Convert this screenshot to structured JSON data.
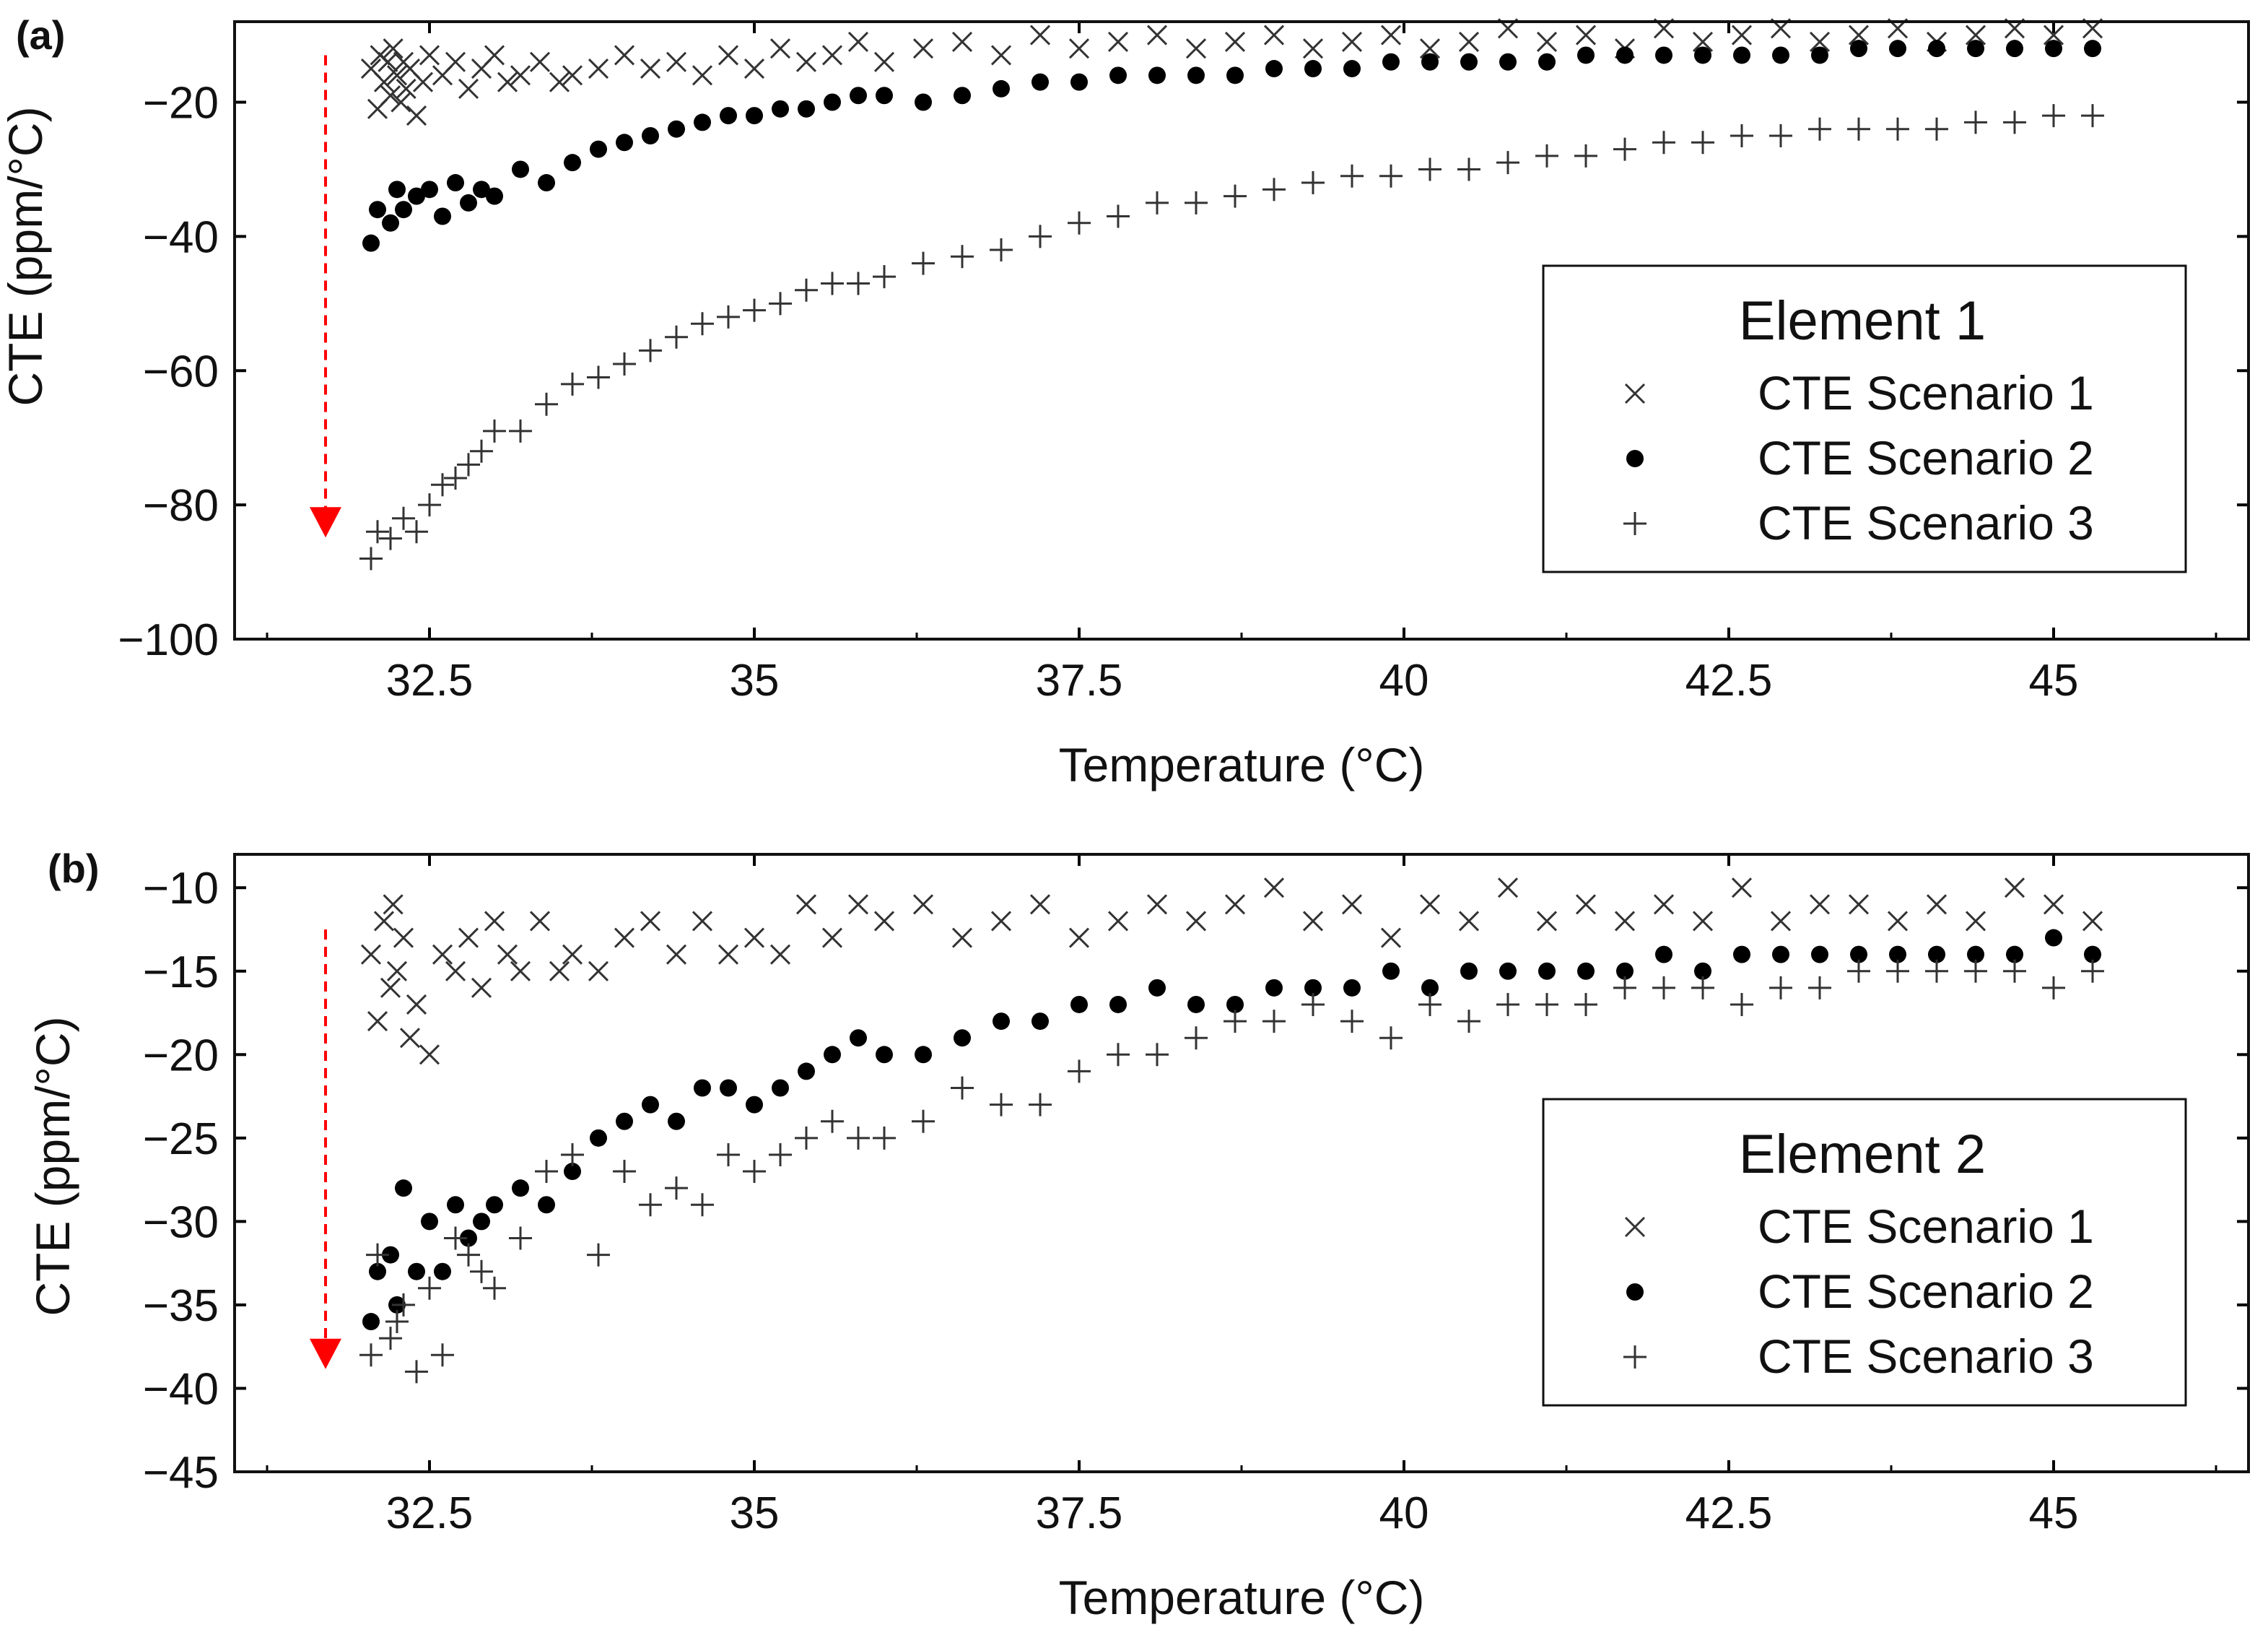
{
  "figure": {
    "background": "#ffffff",
    "mark_color": "#000000",
    "arrow_color": "#ff0000"
  },
  "chart_data": [
    {
      "type": "scatter",
      "panel_label": "(a)",
      "xlabel": "Temperature (°C)",
      "ylabel": "CTE (ppm/°C)",
      "xlim": [
        31.0,
        46.5
      ],
      "ylim": [
        -100,
        -8
      ],
      "xticks": [
        32.5,
        35,
        37.5,
        40,
        42.5,
        45
      ],
      "xtick_labels": [
        "32.5",
        "35",
        "37.5",
        "40",
        "42.5",
        "45"
      ],
      "yticks": [
        -100,
        -80,
        -60,
        -40,
        -20
      ],
      "ytick_labels": [
        "−100",
        "−80",
        "−60",
        "−40",
        "−20"
      ],
      "annotation": {
        "type": "dashed-arrow",
        "x": 31.7,
        "y_from": -13,
        "y_to": -84
      },
      "legend": {
        "title": "Element 1",
        "position": "right",
        "entries": [
          "CTE Scenario 1",
          "CTE Scenario 2",
          "CTE Scenario 3"
        ]
      },
      "series": [
        {
          "name": "CTE Scenario 1",
          "marker": "x",
          "x": [
            32.05,
            32.1,
            32.12,
            32.15,
            32.18,
            32.2,
            32.22,
            32.25,
            32.28,
            32.3,
            32.32,
            32.35,
            32.4,
            32.45,
            32.5,
            32.6,
            32.7,
            32.8,
            32.9,
            33.0,
            33.1,
            33.2,
            33.35,
            33.5,
            33.6,
            33.8,
            34.0,
            34.2,
            34.4,
            34.6,
            34.8,
            35.0,
            35.2,
            35.4,
            35.6,
            35.8,
            36.0,
            36.3,
            36.6,
            36.9,
            37.2,
            37.5,
            37.8,
            38.1,
            38.4,
            38.7,
            39.0,
            39.3,
            39.6,
            39.9,
            40.2,
            40.5,
            40.8,
            41.1,
            41.4,
            41.7,
            42.0,
            42.3,
            42.6,
            42.9,
            43.2,
            43.5,
            43.8,
            44.1,
            44.4,
            44.7,
            45.0,
            45.3
          ],
          "y": [
            -15,
            -21,
            -13,
            -17,
            -14,
            -19,
            -12,
            -16,
            -20,
            -14,
            -18,
            -15,
            -22,
            -17,
            -13,
            -16,
            -14,
            -18,
            -15,
            -13,
            -17,
            -16,
            -14,
            -17,
            -16,
            -15,
            -13,
            -15,
            -14,
            -16,
            -13,
            -15,
            -12,
            -14,
            -13,
            -11,
            -14,
            -12,
            -11,
            -13,
            -10,
            -12,
            -11,
            -10,
            -12,
            -11,
            -10,
            -12,
            -11,
            -10,
            -12,
            -11,
            -9,
            -11,
            -10,
            -12,
            -9,
            -11,
            -10,
            -9,
            -11,
            -10,
            -9,
            -11,
            -10,
            -9,
            -10,
            -9
          ]
        },
        {
          "name": "CTE Scenario 2",
          "marker": "dot",
          "x": [
            32.05,
            32.1,
            32.2,
            32.25,
            32.3,
            32.4,
            32.5,
            32.6,
            32.7,
            32.8,
            32.9,
            33.0,
            33.2,
            33.4,
            33.6,
            33.8,
            34.0,
            34.2,
            34.4,
            34.6,
            34.8,
            35.0,
            35.2,
            35.4,
            35.6,
            35.8,
            36.0,
            36.3,
            36.6,
            36.9,
            37.2,
            37.5,
            37.8,
            38.1,
            38.4,
            38.7,
            39.0,
            39.3,
            39.6,
            39.9,
            40.2,
            40.5,
            40.8,
            41.1,
            41.4,
            41.7,
            42.0,
            42.3,
            42.6,
            42.9,
            43.2,
            43.5,
            43.8,
            44.1,
            44.4,
            44.7,
            45.0,
            45.3
          ],
          "y": [
            -41,
            -36,
            -38,
            -33,
            -36,
            -34,
            -33,
            -37,
            -32,
            -35,
            -33,
            -34,
            -30,
            -32,
            -29,
            -27,
            -26,
            -25,
            -24,
            -23,
            -22,
            -22,
            -21,
            -21,
            -20,
            -19,
            -19,
            -20,
            -19,
            -18,
            -17,
            -17,
            -16,
            -16,
            -16,
            -16,
            -15,
            -15,
            -15,
            -14,
            -14,
            -14,
            -14,
            -14,
            -13,
            -13,
            -13,
            -13,
            -13,
            -13,
            -13,
            -12,
            -12,
            -12,
            -12,
            -12,
            -12,
            -12
          ]
        },
        {
          "name": "CTE Scenario 3",
          "marker": "plus",
          "x": [
            32.05,
            32.1,
            32.2,
            32.3,
            32.4,
            32.5,
            32.6,
            32.7,
            32.8,
            32.9,
            33.0,
            33.2,
            33.4,
            33.6,
            33.8,
            34.0,
            34.2,
            34.4,
            34.6,
            34.8,
            35.0,
            35.2,
            35.4,
            35.6,
            35.8,
            36.0,
            36.3,
            36.6,
            36.9,
            37.2,
            37.5,
            37.8,
            38.1,
            38.4,
            38.7,
            39.0,
            39.3,
            39.6,
            39.9,
            40.2,
            40.5,
            40.8,
            41.1,
            41.4,
            41.7,
            42.0,
            42.3,
            42.6,
            42.9,
            43.2,
            43.5,
            43.8,
            44.1,
            44.4,
            44.7,
            45.0,
            45.3
          ],
          "y": [
            -88,
            -84,
            -85,
            -82,
            -84,
            -80,
            -77,
            -76,
            -74,
            -72,
            -69,
            -69,
            -65,
            -62,
            -61,
            -59,
            -57,
            -55,
            -53,
            -52,
            -51,
            -50,
            -48,
            -47,
            -47,
            -46,
            -44,
            -43,
            -42,
            -40,
            -38,
            -37,
            -35,
            -35,
            -34,
            -33,
            -32,
            -31,
            -31,
            -30,
            -30,
            -29,
            -28,
            -28,
            -27,
            -26,
            -26,
            -25,
            -25,
            -24,
            -24,
            -24,
            -24,
            -23,
            -23,
            -22,
            -22
          ]
        }
      ]
    },
    {
      "type": "scatter",
      "panel_label": "(b)",
      "xlabel": "Temperature (°C)",
      "ylabel": "CTE (ppm/°C)",
      "xlim": [
        31.0,
        46.5
      ],
      "ylim": [
        -45,
        -8
      ],
      "xticks": [
        32.5,
        35,
        37.5,
        40,
        42.5,
        45
      ],
      "xtick_labels": [
        "32.5",
        "35",
        "37.5",
        "40",
        "42.5",
        "45"
      ],
      "yticks": [
        -45,
        -40,
        -35,
        -30,
        -25,
        -20,
        -15,
        -10
      ],
      "ytick_labels": [
        "−45",
        "−40",
        "−35",
        "−30",
        "−25",
        "−20",
        "−15",
        "−10"
      ],
      "annotation": {
        "type": "dashed-arrow",
        "x": 31.7,
        "y_from": -12.5,
        "y_to": -38.5
      },
      "legend": {
        "title": "Element 2",
        "position": "right",
        "entries": [
          "CTE Scenario 1",
          "CTE Scenario 2",
          "CTE Scenario 3"
        ]
      },
      "series": [
        {
          "name": "CTE Scenario 1",
          "marker": "x",
          "x": [
            32.05,
            32.1,
            32.15,
            32.2,
            32.22,
            32.25,
            32.3,
            32.35,
            32.4,
            32.5,
            32.6,
            32.7,
            32.8,
            32.9,
            33.0,
            33.1,
            33.2,
            33.35,
            33.5,
            33.6,
            33.8,
            34.0,
            34.2,
            34.4,
            34.6,
            34.8,
            35.0,
            35.2,
            35.4,
            35.6,
            35.8,
            36.0,
            36.3,
            36.6,
            36.9,
            37.2,
            37.5,
            37.8,
            38.1,
            38.4,
            38.7,
            39.0,
            39.3,
            39.6,
            39.9,
            40.2,
            40.5,
            40.8,
            41.1,
            41.4,
            41.7,
            42.0,
            42.3,
            42.6,
            42.9,
            43.2,
            43.5,
            43.8,
            44.1,
            44.4,
            44.7,
            45.0,
            45.3
          ],
          "y": [
            -14,
            -18,
            -12,
            -16,
            -11,
            -15,
            -13,
            -19,
            -17,
            -20,
            -14,
            -15,
            -13,
            -16,
            -12,
            -14,
            -15,
            -12,
            -15,
            -14,
            -15,
            -13,
            -12,
            -14,
            -12,
            -14,
            -13,
            -14,
            -11,
            -13,
            -11,
            -12,
            -11,
            -13,
            -12,
            -11,
            -13,
            -12,
            -11,
            -12,
            -11,
            -10,
            -12,
            -11,
            -13,
            -11,
            -12,
            -10,
            -12,
            -11,
            -12,
            -11,
            -12,
            -10,
            -12,
            -11,
            -11,
            -12,
            -11,
            -12,
            -10,
            -11,
            -12
          ]
        },
        {
          "name": "CTE Scenario 2",
          "marker": "dot",
          "x": [
            32.05,
            32.1,
            32.2,
            32.25,
            32.3,
            32.4,
            32.5,
            32.6,
            32.7,
            32.8,
            32.9,
            33.0,
            33.2,
            33.4,
            33.6,
            33.8,
            34.0,
            34.2,
            34.4,
            34.6,
            34.8,
            35.0,
            35.2,
            35.4,
            35.6,
            35.8,
            36.0,
            36.3,
            36.6,
            36.9,
            37.2,
            37.5,
            37.8,
            38.1,
            38.4,
            38.7,
            39.0,
            39.3,
            39.6,
            39.9,
            40.2,
            40.5,
            40.8,
            41.1,
            41.4,
            41.7,
            42.0,
            42.3,
            42.6,
            42.9,
            43.2,
            43.5,
            43.8,
            44.1,
            44.4,
            44.7,
            45.0,
            45.3
          ],
          "y": [
            -36,
            -33,
            -32,
            -35,
            -28,
            -33,
            -30,
            -33,
            -29,
            -31,
            -30,
            -29,
            -28,
            -29,
            -27,
            -25,
            -24,
            -23,
            -24,
            -22,
            -22,
            -23,
            -22,
            -21,
            -20,
            -19,
            -20,
            -20,
            -19,
            -18,
            -18,
            -17,
            -17,
            -16,
            -17,
            -17,
            -16,
            -16,
            -16,
            -15,
            -16,
            -15,
            -15,
            -15,
            -15,
            -15,
            -14,
            -15,
            -14,
            -14,
            -14,
            -14,
            -14,
            -14,
            -14,
            -14,
            -13,
            -14
          ]
        },
        {
          "name": "CTE Scenario 3",
          "marker": "plus",
          "x": [
            32.05,
            32.1,
            32.2,
            32.25,
            32.3,
            32.4,
            32.5,
            32.6,
            32.7,
            32.8,
            32.9,
            33.0,
            33.2,
            33.4,
            33.6,
            33.8,
            34.0,
            34.2,
            34.4,
            34.6,
            34.8,
            35.0,
            35.2,
            35.4,
            35.6,
            35.8,
            36.0,
            36.3,
            36.6,
            36.9,
            37.2,
            37.5,
            37.8,
            38.1,
            38.4,
            38.7,
            39.0,
            39.3,
            39.6,
            39.9,
            40.2,
            40.5,
            40.8,
            41.1,
            41.4,
            41.7,
            42.0,
            42.3,
            42.6,
            42.9,
            43.2,
            43.5,
            43.8,
            44.1,
            44.4,
            44.7,
            45.0,
            45.3
          ],
          "y": [
            -38,
            -32,
            -37,
            -36,
            -35,
            -39,
            -34,
            -38,
            -31,
            -32,
            -33,
            -34,
            -31,
            -27,
            -26,
            -32,
            -27,
            -29,
            -28,
            -29,
            -26,
            -27,
            -26,
            -25,
            -24,
            -25,
            -25,
            -24,
            -22,
            -23,
            -23,
            -21,
            -20,
            -20,
            -19,
            -18,
            -18,
            -17,
            -18,
            -19,
            -17,
            -18,
            -17,
            -17,
            -17,
            -16,
            -16,
            -16,
            -17,
            -16,
            -16,
            -15,
            -15,
            -15,
            -15,
            -15,
            -16,
            -15
          ]
        }
      ]
    }
  ]
}
